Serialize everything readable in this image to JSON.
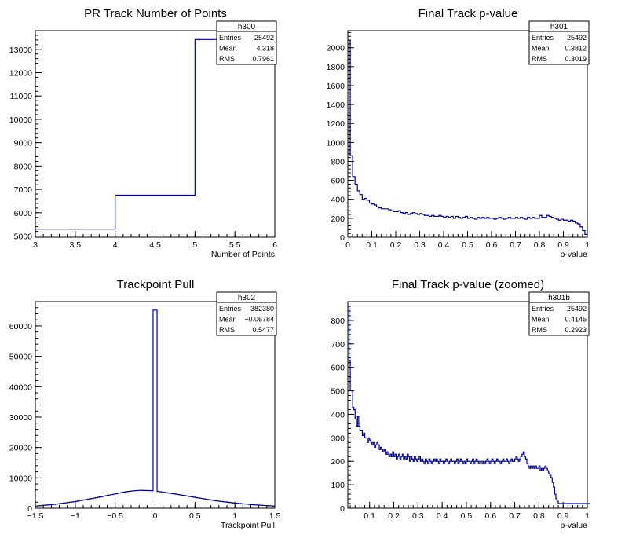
{
  "chart_data": [
    {
      "type": "histogram",
      "title": "PR Track Number of Points",
      "xlabel": "Number of Points",
      "ylabel": "",
      "xlim": [
        3,
        6
      ],
      "ylim": [
        4950,
        13800
      ],
      "x_ticks": [
        "3",
        "3.5",
        "4",
        "4.5",
        "5",
        "5.5",
        "6"
      ],
      "y_ticks": [
        "5000",
        "6000",
        "7000",
        "8000",
        "9000",
        "10000",
        "11000",
        "12000",
        "13000"
      ],
      "bins": [
        {
          "x0": 3,
          "x1": 4,
          "value": 5300
        },
        {
          "x0": 4,
          "x1": 5,
          "value": 6750
        },
        {
          "x0": 5,
          "x1": 6,
          "value": 13420
        }
      ],
      "stats": {
        "name": "h300",
        "entries": "25492",
        "mean": "4.318",
        "rms": "0.7961"
      }
    },
    {
      "type": "histogram",
      "title": "Final Track p-value",
      "xlabel": "p-value",
      "ylabel": "",
      "xlim": [
        0,
        1
      ],
      "ylim": [
        0,
        2180
      ],
      "x_ticks": [
        "0",
        "0.1",
        "0.2",
        "0.3",
        "0.4",
        "0.5",
        "0.6",
        "0.7",
        "0.8",
        "0.9",
        "1"
      ],
      "y_ticks": [
        "0",
        "200",
        "400",
        "600",
        "800",
        "1000",
        "1200",
        "1400",
        "1600",
        "1800",
        "2000"
      ],
      "bin_start": 0,
      "bin_width": 0.01,
      "values": [
        2080,
        860,
        640,
        560,
        490,
        450,
        400,
        410,
        390,
        360,
        350,
        340,
        320,
        310,
        300,
        300,
        300,
        290,
        280,
        270,
        270,
        280,
        260,
        250,
        260,
        240,
        250,
        260,
        250,
        240,
        250,
        240,
        230,
        230,
        220,
        230,
        220,
        220,
        230,
        220,
        210,
        220,
        210,
        220,
        200,
        220,
        210,
        200,
        210,
        220,
        200,
        210,
        200,
        190,
        210,
        200,
        210,
        200,
        210,
        200,
        200,
        190,
        200,
        210,
        200,
        190,
        200,
        210,
        200,
        200,
        210,
        200,
        210,
        200,
        190,
        210,
        200,
        210,
        200,
        200,
        230,
        210,
        210,
        230,
        220,
        210,
        200,
        190,
        180,
        190,
        180,
        180,
        170,
        180,
        170,
        150,
        140,
        110,
        70,
        30
      ],
      "stats": {
        "name": "h301",
        "entries": "25492",
        "mean": "0.3812",
        "rms": "0.3019"
      }
    },
    {
      "type": "histogram",
      "title": "Trackpoint Pull",
      "xlabel": "Trackpoint Pull",
      "ylabel": "",
      "xlim": [
        -1.5,
        1.5
      ],
      "ylim": [
        0,
        68000
      ],
      "x_ticks": [
        "−1.5",
        "−1",
        "−0.5",
        "0",
        "0.5",
        "1",
        "1.5"
      ],
      "y_ticks": [
        "0",
        "10000",
        "20000",
        "30000",
        "40000",
        "50000",
        "60000"
      ],
      "bin_start": -1.5,
      "bin_width": 0.025,
      "envelope": [
        [
          -1.5,
          700
        ],
        [
          -1.25,
          1300
        ],
        [
          -1.0,
          2200
        ],
        [
          -0.75,
          3400
        ],
        [
          -0.5,
          4700
        ],
        [
          -0.35,
          5500
        ],
        [
          -0.2,
          5900
        ],
        [
          -0.05,
          5800
        ],
        [
          0.0,
          5700
        ],
        [
          0.1,
          5300
        ],
        [
          0.25,
          4700
        ],
        [
          0.5,
          3600
        ],
        [
          0.75,
          2500
        ],
        [
          1.0,
          1700
        ],
        [
          1.25,
          1100
        ],
        [
          1.5,
          700
        ]
      ],
      "spike": {
        "x0": -0.025,
        "x1": 0.025,
        "value": 65200
      },
      "stats": {
        "name": "h302",
        "entries": "382380",
        "mean": "−0.06784",
        "rms": "0.5477"
      }
    },
    {
      "type": "histogram",
      "title": "Final Track p-value (zoomed)",
      "xlabel": "p-value",
      "ylabel": "",
      "xlim": [
        0.01,
        1
      ],
      "ylim": [
        0,
        880
      ],
      "x_ticks": [
        "0.1",
        "0.2",
        "0.3",
        "0.4",
        "0.5",
        "0.6",
        "0.7",
        "0.8",
        "0.9",
        "1"
      ],
      "y_ticks": [
        "0",
        "100",
        "200",
        "300",
        "400",
        "500",
        "600",
        "700",
        "800"
      ],
      "bin_start": 0.01,
      "bin_width": 0.005,
      "values": [
        860,
        630,
        500,
        500,
        430,
        420,
        380,
        350,
        390,
        350,
        330,
        330,
        310,
        320,
        300,
        300,
        280,
        300,
        290,
        280,
        270,
        280,
        260,
        270,
        280,
        270,
        250,
        260,
        250,
        240,
        250,
        230,
        240,
        230,
        220,
        230,
        220,
        240,
        220,
        230,
        210,
        220,
        230,
        210,
        220,
        230,
        210,
        220,
        210,
        230,
        220,
        200,
        220,
        210,
        200,
        220,
        210,
        200,
        210,
        220,
        200,
        210,
        200,
        190,
        210,
        200,
        190,
        210,
        200,
        190,
        200,
        210,
        200,
        210,
        200,
        190,
        210,
        200,
        200,
        190,
        200,
        210,
        200,
        190,
        200,
        210,
        200,
        200,
        190,
        200,
        210,
        190,
        200,
        210,
        200,
        190,
        200,
        190,
        210,
        200,
        200,
        190,
        200,
        210,
        190,
        200,
        210,
        200,
        190,
        200,
        200,
        190,
        200,
        190,
        200,
        210,
        200,
        190,
        200,
        210,
        200,
        190,
        200,
        210,
        200,
        200,
        190,
        200,
        210,
        200,
        200,
        210,
        200,
        190,
        200,
        210,
        200,
        200,
        210,
        220,
        210,
        200,
        210,
        220,
        230,
        240,
        220,
        210,
        190,
        180,
        170,
        180,
        170,
        180,
        170,
        180,
        170,
        170,
        180,
        160,
        170,
        160,
        170,
        180,
        170,
        160,
        150,
        140,
        130,
        110,
        90,
        60,
        40,
        30,
        20,
        20,
        20,
        20,
        20,
        20,
        20,
        20,
        20,
        20,
        20,
        20,
        20,
        20,
        20,
        20,
        20,
        20,
        20,
        20,
        20,
        20,
        20,
        20,
        20,
        20
      ],
      "stats": {
        "name": "h301b",
        "entries": "25492",
        "mean": "0.4145",
        "rms": "0.2923"
      }
    }
  ],
  "stats_labels": {
    "entries": "Entries",
    "mean": "Mean",
    "rms": "RMS"
  },
  "style": {
    "line_color": "#000099",
    "axis_color": "#000000",
    "background": "#ffffff"
  }
}
